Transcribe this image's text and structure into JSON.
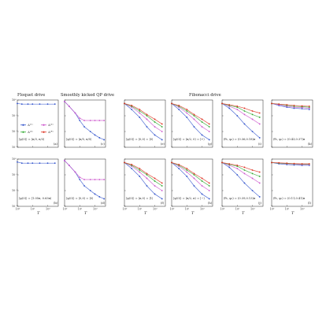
{
  "sections": [
    "Floquet drive",
    "Smoothly kicked QP drive",
    "Fibonacci drive"
  ],
  "x_axis_label": "T",
  "x_ticks": [
    "10⁰",
    "10¹",
    "10²"
  ],
  "y_ticks": [
    "10⁰",
    "10⁻¹",
    "10⁻²",
    "10⁻³"
  ],
  "legend": [
    {
      "label": "Δ⁽¹⁾",
      "color": "#3355cc"
    },
    {
      "label": "Δ⁽²⁾",
      "color": "#cc55cc"
    },
    {
      "label": "Δ⁽³⁾",
      "color": "#33aa33"
    },
    {
      "label": "Δ⁽⁴⁾",
      "color": "#dd3322"
    }
  ],
  "chart_data": [
    {
      "type": "line",
      "panel": "(a)",
      "annotation": "|ψ(0)⟩ = |π/3, π/3⟩",
      "xlim": [
        1,
        500
      ],
      "ylim": [
        0.001,
        1
      ],
      "log_scale": true,
      "series": [
        {
          "name": "Δ⁽¹⁾",
          "x": [
            1,
            2,
            5,
            10,
            30,
            100,
            300
          ],
          "y": [
            0.6,
            0.55,
            0.55,
            0.55,
            0.55,
            0.55,
            0.55
          ]
        }
      ]
    },
    {
      "type": "line",
      "panel": "(b)",
      "annotation": "|ψ(0)⟩ = |1.05π, 0.63π⟩",
      "xlim": [
        1,
        500
      ],
      "ylim": [
        0.001,
        1
      ],
      "log_scale": true,
      "series": [
        {
          "name": "Δ⁽¹⁾",
          "x": [
            1,
            2,
            5,
            10,
            30,
            100,
            300
          ],
          "y": [
            0.65,
            0.55,
            0.55,
            0.55,
            0.55,
            0.55,
            0.55
          ]
        }
      ]
    },
    {
      "type": "line",
      "panel": "(c)",
      "annotation": "|ψ(0)⟩ = |π/5, π/5⟩",
      "xlim": [
        1,
        500
      ],
      "ylim": [
        0.001,
        1
      ],
      "log_scale": true,
      "series": [
        {
          "name": "Δ⁽¹⁾",
          "x": [
            1,
            2,
            5,
            10,
            20,
            50,
            100,
            200,
            400
          ],
          "y": [
            0.8,
            0.4,
            0.15,
            0.05,
            0.02,
            0.01,
            0.006,
            0.004,
            0.003
          ]
        },
        {
          "name": "Δ⁽²⁾",
          "x": [
            1,
            2,
            5,
            10,
            20,
            50,
            100,
            200,
            400
          ],
          "y": [
            0.8,
            0.4,
            0.15,
            0.07,
            0.05,
            0.05,
            0.05,
            0.05,
            0.05
          ]
        }
      ]
    },
    {
      "type": "line",
      "panel": "(d)",
      "annotation": "|ψ(0)⟩ = |0,0⟩ = |0⟩",
      "xlim": [
        1,
        500
      ],
      "ylim": [
        0.001,
        1
      ],
      "log_scale": true,
      "series": [
        {
          "name": "Δ⁽¹⁾",
          "x": [
            1,
            2,
            5,
            10,
            20,
            50,
            100,
            200,
            400
          ],
          "y": [
            0.8,
            0.4,
            0.15,
            0.05,
            0.02,
            0.01,
            0.006,
            0.004,
            0.003
          ]
        },
        {
          "name": "Δ⁽²⁾",
          "x": [
            1,
            2,
            5,
            10,
            20,
            50,
            100,
            200,
            400
          ],
          "y": [
            0.8,
            0.4,
            0.15,
            0.07,
            0.05,
            0.05,
            0.05,
            0.05,
            0.05
          ]
        }
      ]
    },
    {
      "type": "line",
      "panel": "(e)",
      "annotation": "|ψ(0)⟩ = |0,0⟩ = |0⟩",
      "xlim": [
        1,
        500
      ],
      "ylim": [
        0.001,
        1
      ],
      "log_scale": true,
      "series": [
        {
          "name": "Δ⁽¹⁾",
          "x": [
            1,
            3,
            10,
            30,
            100,
            300
          ],
          "y": [
            0.6,
            0.25,
            0.08,
            0.02,
            0.006,
            0.003
          ]
        },
        {
          "name": "Δ⁽²⁾",
          "x": [
            1,
            3,
            10,
            30,
            100,
            300
          ],
          "y": [
            0.6,
            0.35,
            0.15,
            0.06,
            0.02,
            0.01
          ]
        },
        {
          "name": "Δ⁽³⁾",
          "x": [
            1,
            3,
            10,
            30,
            100,
            300
          ],
          "y": [
            0.6,
            0.4,
            0.2,
            0.1,
            0.04,
            0.02
          ]
        },
        {
          "name": "Δ⁽⁴⁾",
          "x": [
            1,
            3,
            10,
            30,
            100,
            300
          ],
          "y": [
            0.6,
            0.45,
            0.25,
            0.12,
            0.06,
            0.03
          ]
        }
      ]
    },
    {
      "type": "line",
      "panel": "(f)",
      "annotation": "|ψ(0)⟩ = |π,0⟩ = |1⟩",
      "xlim": [
        1,
        500
      ],
      "ylim": [
        0.001,
        1
      ],
      "log_scale": true,
      "series": [
        {
          "name": "Δ⁽¹⁾",
          "x": [
            1,
            3,
            10,
            30,
            100,
            300
          ],
          "y": [
            0.6,
            0.25,
            0.08,
            0.02,
            0.006,
            0.003
          ]
        },
        {
          "name": "Δ⁽²⁾",
          "x": [
            1,
            3,
            10,
            30,
            100,
            300
          ],
          "y": [
            0.6,
            0.35,
            0.15,
            0.06,
            0.02,
            0.01
          ]
        },
        {
          "name": "Δ⁽³⁾",
          "x": [
            1,
            3,
            10,
            30,
            100,
            300
          ],
          "y": [
            0.6,
            0.4,
            0.2,
            0.1,
            0.04,
            0.02
          ]
        },
        {
          "name": "Δ⁽⁴⁾",
          "x": [
            1,
            3,
            10,
            30,
            100,
            300
          ],
          "y": [
            0.6,
            0.45,
            0.25,
            0.12,
            0.06,
            0.03
          ]
        }
      ]
    },
    {
      "type": "line",
      "panel": "(g)",
      "annotation": "|ψ(0)⟩ = |π/2, 0⟩ = |+⟩",
      "xlim": [
        1,
        500
      ],
      "ylim": [
        0.001,
        1
      ],
      "log_scale": true,
      "series": [
        {
          "name": "Δ⁽¹⁾",
          "x": [
            1,
            3,
            10,
            30,
            100,
            300
          ],
          "y": [
            0.6,
            0.25,
            0.08,
            0.02,
            0.006,
            0.003
          ]
        },
        {
          "name": "Δ⁽²⁾",
          "x": [
            1,
            3,
            10,
            30,
            100,
            300
          ],
          "y": [
            0.6,
            0.35,
            0.15,
            0.06,
            0.02,
            0.01
          ]
        },
        {
          "name": "Δ⁽³⁾",
          "x": [
            1,
            3,
            10,
            30,
            100,
            300
          ],
          "y": [
            0.6,
            0.4,
            0.2,
            0.1,
            0.04,
            0.02
          ]
        },
        {
          "name": "Δ⁽⁴⁾",
          "x": [
            1,
            3,
            10,
            30,
            100,
            300
          ],
          "y": [
            0.6,
            0.45,
            0.25,
            0.12,
            0.06,
            0.03
          ]
        }
      ]
    },
    {
      "type": "line",
      "panel": "(h)",
      "annotation": "|ψ(0)⟩ = |π/2, π⟩ = |−⟩",
      "xlim": [
        1,
        500
      ],
      "ylim": [
        0.001,
        1
      ],
      "log_scale": true,
      "series": [
        {
          "name": "Δ⁽¹⁾",
          "x": [
            1,
            3,
            10,
            30,
            100,
            300
          ],
          "y": [
            0.6,
            0.25,
            0.08,
            0.02,
            0.006,
            0.003
          ]
        },
        {
          "name": "Δ⁽²⁾",
          "x": [
            1,
            3,
            10,
            30,
            100,
            300
          ],
          "y": [
            0.6,
            0.35,
            0.15,
            0.06,
            0.02,
            0.01
          ]
        },
        {
          "name": "Δ⁽³⁾",
          "x": [
            1,
            3,
            10,
            30,
            100,
            300
          ],
          "y": [
            0.6,
            0.4,
            0.2,
            0.1,
            0.04,
            0.02
          ]
        },
        {
          "name": "Δ⁽⁴⁾",
          "x": [
            1,
            3,
            10,
            30,
            100,
            300
          ],
          "y": [
            0.6,
            0.45,
            0.25,
            0.12,
            0.06,
            0.03
          ]
        }
      ]
    },
    {
      "type": "line",
      "panel": "(i)",
      "annotation": "(θ₀, φ₀) = (0.36,0.18)π",
      "xlim": [
        1,
        500
      ],
      "ylim": [
        0.001,
        1
      ],
      "log_scale": true,
      "series": [
        {
          "name": "Δ⁽¹⁾",
          "x": [
            1,
            3,
            10,
            30,
            100,
            300
          ],
          "y": [
            0.6,
            0.3,
            0.1,
            0.03,
            0.01,
            0.004
          ]
        },
        {
          "name": "Δ⁽²⁾",
          "x": [
            1,
            3,
            10,
            30,
            100,
            300
          ],
          "y": [
            0.6,
            0.4,
            0.25,
            0.12,
            0.06,
            0.03
          ]
        },
        {
          "name": "Δ⁽³⁾",
          "x": [
            1,
            3,
            10,
            30,
            100,
            300
          ],
          "y": [
            0.6,
            0.45,
            0.35,
            0.2,
            0.12,
            0.08
          ]
        },
        {
          "name": "Δ⁽⁴⁾",
          "x": [
            1,
            3,
            10,
            30,
            100,
            300
          ],
          "y": [
            0.6,
            0.5,
            0.4,
            0.3,
            0.2,
            0.15
          ]
        }
      ]
    },
    {
      "type": "line",
      "panel": "(j)",
      "annotation": "(θ₀, φ₀) = (0.39,0.13)π",
      "xlim": [
        1,
        500
      ],
      "ylim": [
        0.001,
        1
      ],
      "log_scale": true,
      "series": [
        {
          "name": "Δ⁽¹⁾",
          "x": [
            1,
            3,
            10,
            30,
            100,
            300
          ],
          "y": [
            0.6,
            0.3,
            0.1,
            0.03,
            0.01,
            0.004
          ]
        },
        {
          "name": "Δ⁽²⁾",
          "x": [
            1,
            3,
            10,
            30,
            100,
            300
          ],
          "y": [
            0.6,
            0.4,
            0.25,
            0.12,
            0.06,
            0.03
          ]
        },
        {
          "name": "Δ⁽³⁾",
          "x": [
            1,
            3,
            10,
            30,
            100,
            300
          ],
          "y": [
            0.6,
            0.45,
            0.35,
            0.2,
            0.12,
            0.08
          ]
        },
        {
          "name": "Δ⁽⁴⁾",
          "x": [
            1,
            3,
            10,
            30,
            100,
            300
          ],
          "y": [
            0.6,
            0.5,
            0.4,
            0.3,
            0.2,
            0.15
          ]
        }
      ]
    },
    {
      "type": "line",
      "panel": "(k)",
      "annotation": "(θ₀, φ₀) = (0.43,0.37)π",
      "xlim": [
        1,
        500
      ],
      "ylim": [
        0.001,
        1
      ],
      "log_scale": true,
      "series": [
        {
          "name": "Δ⁽¹⁾",
          "x": [
            1,
            3,
            10,
            30,
            100,
            300
          ],
          "y": [
            0.6,
            0.45,
            0.35,
            0.3,
            0.28,
            0.25
          ]
        },
        {
          "name": "Δ⁽²⁾",
          "x": [
            1,
            3,
            10,
            30,
            100,
            300
          ],
          "y": [
            0.6,
            0.5,
            0.4,
            0.35,
            0.33,
            0.3
          ]
        },
        {
          "name": "Δ⁽³⁾",
          "x": [
            1,
            3,
            10,
            30,
            100,
            300
          ],
          "y": [
            0.6,
            0.55,
            0.45,
            0.4,
            0.38,
            0.35
          ]
        },
        {
          "name": "Δ⁽⁴⁾",
          "x": [
            1,
            3,
            10,
            30,
            100,
            300
          ],
          "y": [
            0.6,
            0.55,
            0.5,
            0.45,
            0.42,
            0.4
          ]
        }
      ]
    },
    {
      "type": "line",
      "panel": "(l)",
      "annotation": "(θ₀, φ₀) = (0.11,0.41)π",
      "xlim": [
        1,
        500
      ],
      "ylim": [
        0.001,
        1
      ],
      "log_scale": true,
      "series": [
        {
          "name": "Δ⁽¹⁾",
          "x": [
            1,
            3,
            10,
            30,
            100,
            300
          ],
          "y": [
            0.6,
            0.5,
            0.45,
            0.42,
            0.4,
            0.4
          ]
        },
        {
          "name": "Δ⁽²⁾",
          "x": [
            1,
            3,
            10,
            30,
            100,
            300
          ],
          "y": [
            0.6,
            0.55,
            0.5,
            0.48,
            0.45,
            0.45
          ]
        },
        {
          "name": "Δ⁽³⁾",
          "x": [
            1,
            3,
            10,
            30,
            100,
            300
          ],
          "y": [
            0.6,
            0.55,
            0.52,
            0.5,
            0.48,
            0.48
          ]
        },
        {
          "name": "Δ⁽⁴⁾",
          "x": [
            1,
            3,
            10,
            30,
            100,
            300
          ],
          "y": [
            0.6,
            0.58,
            0.55,
            0.52,
            0.5,
            0.5
          ]
        }
      ]
    }
  ]
}
